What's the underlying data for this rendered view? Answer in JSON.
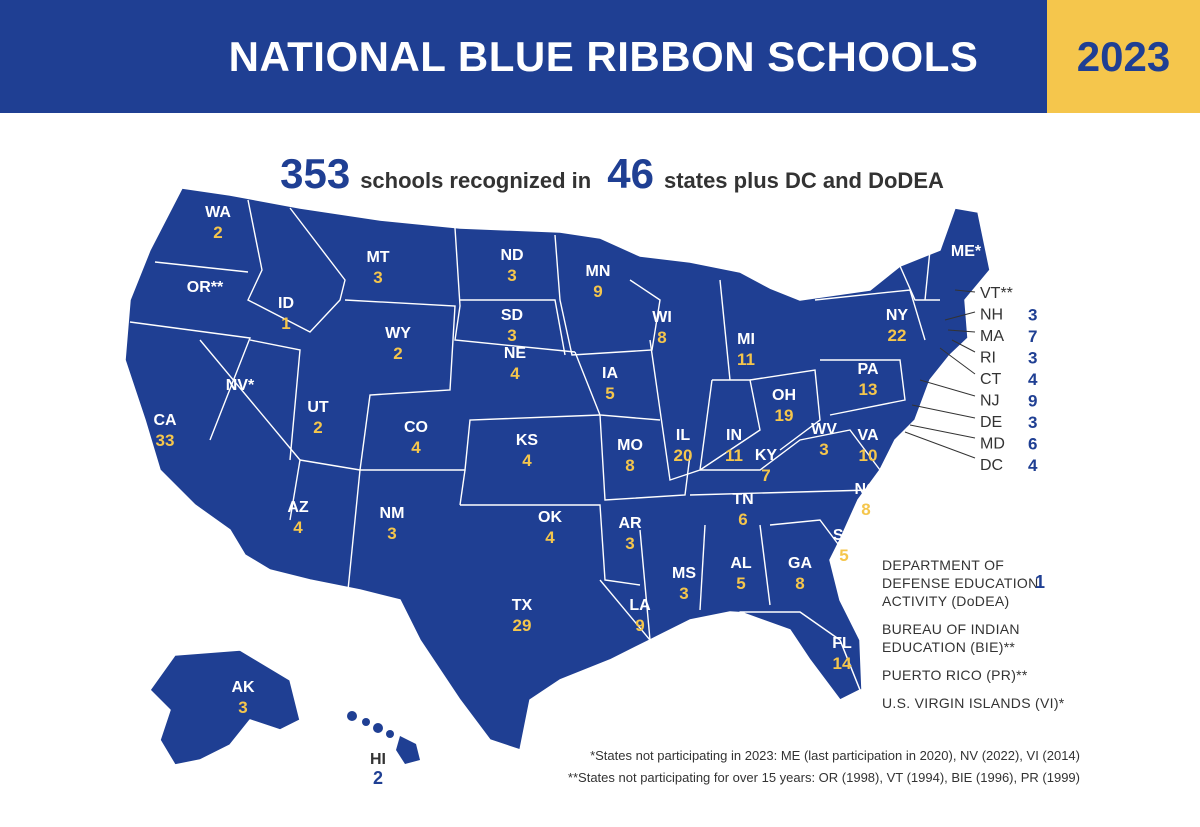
{
  "header": {
    "title": "NATIONAL BLUE RIBBON SCHOOLS",
    "year": "2023"
  },
  "summary": {
    "schools_count": "353",
    "schools_text": "schools recognized in",
    "states_count": "46",
    "states_text": "states plus DC and DoDEA"
  },
  "colors": {
    "primary": "#1f3f93",
    "accent": "#f5c64c"
  },
  "states": [
    {
      "abbr": "WA",
      "count": "2"
    },
    {
      "abbr": "OR**",
      "count": ""
    },
    {
      "abbr": "CA",
      "count": "33"
    },
    {
      "abbr": "NV*",
      "count": ""
    },
    {
      "abbr": "ID",
      "count": "1"
    },
    {
      "abbr": "MT",
      "count": "3"
    },
    {
      "abbr": "WY",
      "count": "2"
    },
    {
      "abbr": "UT",
      "count": "2"
    },
    {
      "abbr": "AZ",
      "count": "4"
    },
    {
      "abbr": "CO",
      "count": "4"
    },
    {
      "abbr": "NM",
      "count": "3"
    },
    {
      "abbr": "ND",
      "count": "3"
    },
    {
      "abbr": "SD",
      "count": "3"
    },
    {
      "abbr": "NE",
      "count": "4"
    },
    {
      "abbr": "KS",
      "count": "4"
    },
    {
      "abbr": "OK",
      "count": "4"
    },
    {
      "abbr": "TX",
      "count": "29"
    },
    {
      "abbr": "MN",
      "count": "9"
    },
    {
      "abbr": "IA",
      "count": "5"
    },
    {
      "abbr": "MO",
      "count": "8"
    },
    {
      "abbr": "AR",
      "count": "3"
    },
    {
      "abbr": "LA",
      "count": "9"
    },
    {
      "abbr": "WI",
      "count": "8"
    },
    {
      "abbr": "IL",
      "count": "20"
    },
    {
      "abbr": "MI",
      "count": "11"
    },
    {
      "abbr": "IN",
      "count": "11"
    },
    {
      "abbr": "OH",
      "count": "19"
    },
    {
      "abbr": "KY",
      "count": "7"
    },
    {
      "abbr": "TN",
      "count": "6"
    },
    {
      "abbr": "MS",
      "count": "3"
    },
    {
      "abbr": "AL",
      "count": "5"
    },
    {
      "abbr": "GA",
      "count": "8"
    },
    {
      "abbr": "FL",
      "count": "14"
    },
    {
      "abbr": "SC",
      "count": "5"
    },
    {
      "abbr": "NC",
      "count": "8"
    },
    {
      "abbr": "VA",
      "count": "10"
    },
    {
      "abbr": "WV",
      "count": "3"
    },
    {
      "abbr": "PA",
      "count": "13"
    },
    {
      "abbr": "NY",
      "count": "22"
    },
    {
      "abbr": "ME*",
      "count": ""
    },
    {
      "abbr": "AK",
      "count": "3"
    }
  ],
  "hawaii": {
    "abbr": "HI",
    "count": "2"
  },
  "northeast_legend": [
    {
      "abbr": "VT**",
      "count": ""
    },
    {
      "abbr": "NH",
      "count": "3"
    },
    {
      "abbr": "MA",
      "count": "7"
    },
    {
      "abbr": "RI",
      "count": "3"
    },
    {
      "abbr": "CT",
      "count": "4"
    },
    {
      "abbr": "NJ",
      "count": "9"
    },
    {
      "abbr": "DE",
      "count": "3"
    },
    {
      "abbr": "MD",
      "count": "6"
    },
    {
      "abbr": "DC",
      "count": "4"
    }
  ],
  "other_entities": [
    {
      "lines": [
        "DEPARTMENT OF",
        "DEFENSE EDUCATION",
        "ACTIVITY (DoDEA)"
      ],
      "count": "1"
    },
    {
      "lines": [
        "BUREAU OF INDIAN",
        "EDUCATION (BIE)**"
      ],
      "count": ""
    },
    {
      "lines": [
        "PUERTO RICO (PR)**"
      ],
      "count": ""
    },
    {
      "lines": [
        "U.S. VIRGIN ISLANDS (VI)*"
      ],
      "count": ""
    }
  ],
  "footnotes": [
    "*States not participating in 2023: ME (last participation in 2020), NV (2022), VI (2014)",
    "**States not participating for over 15 years: OR (1998), VT (1994), BIE (1996), PR (1999)"
  ]
}
